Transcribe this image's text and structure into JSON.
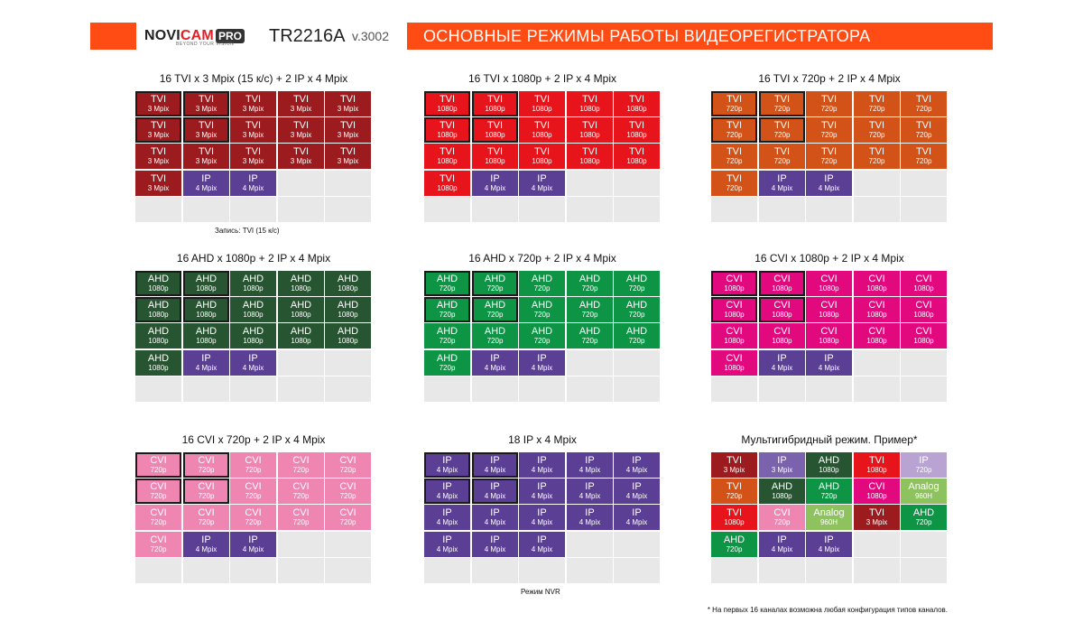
{
  "header": {
    "brand_novi": "NOVI",
    "brand_cam": "CAM",
    "brand_pro": "PRO",
    "brand_tagline": "BEYOND YOUR VISION",
    "model": "TR2216A",
    "version": "v.3002",
    "title": "ОСНОВНЫЕ РЕЖИМЫ РАБОТЫ ВИДЕОРЕГИСТРАТОРА",
    "accent_color": "#ff4b14"
  },
  "palette": {
    "TVI3": "#9b1b1f",
    "TVI1080": "#e8141b",
    "TVI720": "#d35217",
    "AHD1080": "#285531",
    "AHD720": "#0d9545",
    "CVI1080": "#e2097f",
    "CVI720": "#ef86b2",
    "IP4": "#5b3f95",
    "IP3": "#7a62ac",
    "IPL": "#b8a3d2",
    "AN": "#8ec25e",
    "EMPTY": "#e8e8e8"
  },
  "grids": [
    {
      "title": "16 TVI x 3 Mpix (15 к/с) + 2 IP x 4 Mpix",
      "note": "Запись: TVI (15 к/с)",
      "highlight": 2,
      "cells": [
        {
          "l1": "TVI",
          "l2": "3 Mpix",
          "c": "TVI3"
        },
        {
          "l1": "TVI",
          "l2": "3 Mpix",
          "c": "TVI3"
        },
        {
          "l1": "TVI",
          "l2": "3 Mpix",
          "c": "TVI3"
        },
        {
          "l1": "TVI",
          "l2": "3 Mpix",
          "c": "TVI3"
        },
        {
          "l1": "TVI",
          "l2": "3 Mpix",
          "c": "TVI3"
        },
        {
          "l1": "TVI",
          "l2": "3 Mpix",
          "c": "TVI3"
        },
        {
          "l1": "TVI",
          "l2": "3 Mpix",
          "c": "TVI3"
        },
        {
          "l1": "TVI",
          "l2": "3 Mpix",
          "c": "TVI3"
        },
        {
          "l1": "TVI",
          "l2": "3 Mpix",
          "c": "TVI3"
        },
        {
          "l1": "TVI",
          "l2": "3 Mpix",
          "c": "TVI3"
        },
        {
          "l1": "TVI",
          "l2": "3 Mpix",
          "c": "TVI3"
        },
        {
          "l1": "TVI",
          "l2": "3 Mpix",
          "c": "TVI3"
        },
        {
          "l1": "TVI",
          "l2": "3 Mpix",
          "c": "TVI3"
        },
        {
          "l1": "TVI",
          "l2": "3 Mpix",
          "c": "TVI3"
        },
        {
          "l1": "TVI",
          "l2": "3 Mpix",
          "c": "TVI3"
        },
        {
          "l1": "TVI",
          "l2": "3 Mpix",
          "c": "TVI3"
        },
        {
          "l1": "IP",
          "l2": "4 Mpix",
          "c": "IP4"
        },
        {
          "l1": "IP",
          "l2": "4 Mpix",
          "c": "IP4"
        },
        {
          "c": "EMPTY"
        },
        {
          "c": "EMPTY"
        },
        {
          "c": "EMPTY"
        },
        {
          "c": "EMPTY"
        },
        {
          "c": "EMPTY"
        },
        {
          "c": "EMPTY"
        },
        {
          "c": "EMPTY"
        }
      ]
    },
    {
      "title": "16 TVI x 1080p + 2 IP x 4 Mpix",
      "highlight": 2,
      "cells": [
        {
          "l1": "TVI",
          "l2": "1080p",
          "c": "TVI1080"
        },
        {
          "l1": "TVI",
          "l2": "1080p",
          "c": "TVI1080"
        },
        {
          "l1": "TVI",
          "l2": "1080p",
          "c": "TVI1080"
        },
        {
          "l1": "TVI",
          "l2": "1080p",
          "c": "TVI1080"
        },
        {
          "l1": "TVI",
          "l2": "1080p",
          "c": "TVI1080"
        },
        {
          "l1": "TVI",
          "l2": "1080p",
          "c": "TVI1080"
        },
        {
          "l1": "TVI",
          "l2": "1080p",
          "c": "TVI1080"
        },
        {
          "l1": "TVI",
          "l2": "1080p",
          "c": "TVI1080"
        },
        {
          "l1": "TVI",
          "l2": "1080p",
          "c": "TVI1080"
        },
        {
          "l1": "TVI",
          "l2": "1080p",
          "c": "TVI1080"
        },
        {
          "l1": "TVI",
          "l2": "1080p",
          "c": "TVI1080"
        },
        {
          "l1": "TVI",
          "l2": "1080p",
          "c": "TVI1080"
        },
        {
          "l1": "TVI",
          "l2": "1080p",
          "c": "TVI1080"
        },
        {
          "l1": "TVI",
          "l2": "1080p",
          "c": "TVI1080"
        },
        {
          "l1": "TVI",
          "l2": "1080p",
          "c": "TVI1080"
        },
        {
          "l1": "TVI",
          "l2": "1080p",
          "c": "TVI1080"
        },
        {
          "l1": "IP",
          "l2": "4 Mpix",
          "c": "IP4"
        },
        {
          "l1": "IP",
          "l2": "4 Mpix",
          "c": "IP4"
        },
        {
          "c": "EMPTY"
        },
        {
          "c": "EMPTY"
        },
        {
          "c": "EMPTY"
        },
        {
          "c": "EMPTY"
        },
        {
          "c": "EMPTY"
        },
        {
          "c": "EMPTY"
        },
        {
          "c": "EMPTY"
        }
      ]
    },
    {
      "title": "16 TVI x 720p + 2 IP x 4 Mpix",
      "highlight": 2,
      "cells": [
        {
          "l1": "TVI",
          "l2": "720p",
          "c": "TVI720"
        },
        {
          "l1": "TVI",
          "l2": "720p",
          "c": "TVI720"
        },
        {
          "l1": "TVI",
          "l2": "720p",
          "c": "TVI720"
        },
        {
          "l1": "TVI",
          "l2": "720p",
          "c": "TVI720"
        },
        {
          "l1": "TVI",
          "l2": "720p",
          "c": "TVI720"
        },
        {
          "l1": "TVI",
          "l2": "720p",
          "c": "TVI720"
        },
        {
          "l1": "TVI",
          "l2": "720p",
          "c": "TVI720"
        },
        {
          "l1": "TVI",
          "l2": "720p",
          "c": "TVI720"
        },
        {
          "l1": "TVI",
          "l2": "720p",
          "c": "TVI720"
        },
        {
          "l1": "TVI",
          "l2": "720p",
          "c": "TVI720"
        },
        {
          "l1": "TVI",
          "l2": "720p",
          "c": "TVI720"
        },
        {
          "l1": "TVI",
          "l2": "720p",
          "c": "TVI720"
        },
        {
          "l1": "TVI",
          "l2": "720p",
          "c": "TVI720"
        },
        {
          "l1": "TVI",
          "l2": "720p",
          "c": "TVI720"
        },
        {
          "l1": "TVI",
          "l2": "720p",
          "c": "TVI720"
        },
        {
          "l1": "TVI",
          "l2": "720p",
          "c": "TVI720"
        },
        {
          "l1": "IP",
          "l2": "4 Mpix",
          "c": "IP4"
        },
        {
          "l1": "IP",
          "l2": "4 Mpix",
          "c": "IP4"
        },
        {
          "c": "EMPTY"
        },
        {
          "c": "EMPTY"
        },
        {
          "c": "EMPTY"
        },
        {
          "c": "EMPTY"
        },
        {
          "c": "EMPTY"
        },
        {
          "c": "EMPTY"
        },
        {
          "c": "EMPTY"
        }
      ]
    },
    {
      "title": "16 AHD x 1080p + 2 IP x 4 Mpix",
      "highlight": 2,
      "cells": [
        {
          "l1": "AHD",
          "l2": "1080p",
          "c": "AHD1080"
        },
        {
          "l1": "AHD",
          "l2": "1080p",
          "c": "AHD1080"
        },
        {
          "l1": "AHD",
          "l2": "1080p",
          "c": "AHD1080"
        },
        {
          "l1": "AHD",
          "l2": "1080p",
          "c": "AHD1080"
        },
        {
          "l1": "AHD",
          "l2": "1080p",
          "c": "AHD1080"
        },
        {
          "l1": "AHD",
          "l2": "1080p",
          "c": "AHD1080"
        },
        {
          "l1": "AHD",
          "l2": "1080p",
          "c": "AHD1080"
        },
        {
          "l1": "AHD",
          "l2": "1080p",
          "c": "AHD1080"
        },
        {
          "l1": "AHD",
          "l2": "1080p",
          "c": "AHD1080"
        },
        {
          "l1": "AHD",
          "l2": "1080p",
          "c": "AHD1080"
        },
        {
          "l1": "AHD",
          "l2": "1080p",
          "c": "AHD1080"
        },
        {
          "l1": "AHD",
          "l2": "1080p",
          "c": "AHD1080"
        },
        {
          "l1": "AHD",
          "l2": "1080p",
          "c": "AHD1080"
        },
        {
          "l1": "AHD",
          "l2": "1080p",
          "c": "AHD1080"
        },
        {
          "l1": "AHD",
          "l2": "1080p",
          "c": "AHD1080"
        },
        {
          "l1": "AHD",
          "l2": "1080p",
          "c": "AHD1080"
        },
        {
          "l1": "IP",
          "l2": "4 Mpix",
          "c": "IP4"
        },
        {
          "l1": "IP",
          "l2": "4 Mpix",
          "c": "IP4"
        },
        {
          "c": "EMPTY"
        },
        {
          "c": "EMPTY"
        },
        {
          "c": "EMPTY"
        },
        {
          "c": "EMPTY"
        },
        {
          "c": "EMPTY"
        },
        {
          "c": "EMPTY"
        },
        {
          "c": "EMPTY"
        }
      ]
    },
    {
      "title": "16 AHD x 720p + 2 IP x 4 Mpix",
      "highlight": 2,
      "cells": [
        {
          "l1": "AHD",
          "l2": "720p",
          "c": "AHD720"
        },
        {
          "l1": "AHD",
          "l2": "720p",
          "c": "AHD720"
        },
        {
          "l1": "AHD",
          "l2": "720p",
          "c": "AHD720"
        },
        {
          "l1": "AHD",
          "l2": "720p",
          "c": "AHD720"
        },
        {
          "l1": "AHD",
          "l2": "720p",
          "c": "AHD720"
        },
        {
          "l1": "AHD",
          "l2": "720p",
          "c": "AHD720"
        },
        {
          "l1": "AHD",
          "l2": "720p",
          "c": "AHD720"
        },
        {
          "l1": "AHD",
          "l2": "720p",
          "c": "AHD720"
        },
        {
          "l1": "AHD",
          "l2": "720p",
          "c": "AHD720"
        },
        {
          "l1": "AHD",
          "l2": "720p",
          "c": "AHD720"
        },
        {
          "l1": "AHD",
          "l2": "720p",
          "c": "AHD720"
        },
        {
          "l1": "AHD",
          "l2": "720p",
          "c": "AHD720"
        },
        {
          "l1": "AHD",
          "l2": "720p",
          "c": "AHD720"
        },
        {
          "l1": "AHD",
          "l2": "720p",
          "c": "AHD720"
        },
        {
          "l1": "AHD",
          "l2": "720p",
          "c": "AHD720"
        },
        {
          "l1": "AHD",
          "l2": "720p",
          "c": "AHD720"
        },
        {
          "l1": "IP",
          "l2": "4 Mpix",
          "c": "IP4"
        },
        {
          "l1": "IP",
          "l2": "4 Mpix",
          "c": "IP4"
        },
        {
          "c": "EMPTY"
        },
        {
          "c": "EMPTY"
        },
        {
          "c": "EMPTY"
        },
        {
          "c": "EMPTY"
        },
        {
          "c": "EMPTY"
        },
        {
          "c": "EMPTY"
        },
        {
          "c": "EMPTY"
        }
      ]
    },
    {
      "title": "16 CVI x 1080p + 2 IP x 4 Mpix",
      "highlight": 2,
      "cells": [
        {
          "l1": "CVI",
          "l2": "1080p",
          "c": "CVI1080"
        },
        {
          "l1": "CVI",
          "l2": "1080p",
          "c": "CVI1080"
        },
        {
          "l1": "CVI",
          "l2": "1080p",
          "c": "CVI1080"
        },
        {
          "l1": "CVI",
          "l2": "1080p",
          "c": "CVI1080"
        },
        {
          "l1": "CVI",
          "l2": "1080p",
          "c": "CVI1080"
        },
        {
          "l1": "CVI",
          "l2": "1080p",
          "c": "CVI1080"
        },
        {
          "l1": "CVI",
          "l2": "1080p",
          "c": "CVI1080"
        },
        {
          "l1": "CVI",
          "l2": "1080p",
          "c": "CVI1080"
        },
        {
          "l1": "CVI",
          "l2": "1080p",
          "c": "CVI1080"
        },
        {
          "l1": "CVI",
          "l2": "1080p",
          "c": "CVI1080"
        },
        {
          "l1": "CVI",
          "l2": "1080p",
          "c": "CVI1080"
        },
        {
          "l1": "CVI",
          "l2": "1080p",
          "c": "CVI1080"
        },
        {
          "l1": "CVI",
          "l2": "1080p",
          "c": "CVI1080"
        },
        {
          "l1": "CVI",
          "l2": "1080p",
          "c": "CVI1080"
        },
        {
          "l1": "CVI",
          "l2": "1080p",
          "c": "CVI1080"
        },
        {
          "l1": "CVI",
          "l2": "1080p",
          "c": "CVI1080"
        },
        {
          "l1": "IP",
          "l2": "4 Mpix",
          "c": "IP4"
        },
        {
          "l1": "IP",
          "l2": "4 Mpix",
          "c": "IP4"
        },
        {
          "c": "EMPTY"
        },
        {
          "c": "EMPTY"
        },
        {
          "c": "EMPTY"
        },
        {
          "c": "EMPTY"
        },
        {
          "c": "EMPTY"
        },
        {
          "c": "EMPTY"
        },
        {
          "c": "EMPTY"
        }
      ]
    },
    {
      "title": "16 CVI x 720p + 2 IP x 4 Mpix",
      "highlight": 2,
      "cells": [
        {
          "l1": "CVI",
          "l2": "720p",
          "c": "CVI720"
        },
        {
          "l1": "CVI",
          "l2": "720p",
          "c": "CVI720"
        },
        {
          "l1": "CVI",
          "l2": "720p",
          "c": "CVI720"
        },
        {
          "l1": "CVI",
          "l2": "720p",
          "c": "CVI720"
        },
        {
          "l1": "CVI",
          "l2": "720p",
          "c": "CVI720"
        },
        {
          "l1": "CVI",
          "l2": "720p",
          "c": "CVI720"
        },
        {
          "l1": "CVI",
          "l2": "720p",
          "c": "CVI720"
        },
        {
          "l1": "CVI",
          "l2": "720p",
          "c": "CVI720"
        },
        {
          "l1": "CVI",
          "l2": "720p",
          "c": "CVI720"
        },
        {
          "l1": "CVI",
          "l2": "720p",
          "c": "CVI720"
        },
        {
          "l1": "CVI",
          "l2": "720p",
          "c": "CVI720"
        },
        {
          "l1": "CVI",
          "l2": "720p",
          "c": "CVI720"
        },
        {
          "l1": "CVI",
          "l2": "720p",
          "c": "CVI720"
        },
        {
          "l1": "CVI",
          "l2": "720p",
          "c": "CVI720"
        },
        {
          "l1": "CVI",
          "l2": "720p",
          "c": "CVI720"
        },
        {
          "l1": "CVI",
          "l2": "720p",
          "c": "CVI720"
        },
        {
          "l1": "IP",
          "l2": "4 Mpix",
          "c": "IP4"
        },
        {
          "l1": "IP",
          "l2": "4 Mpix",
          "c": "IP4"
        },
        {
          "c": "EMPTY"
        },
        {
          "c": "EMPTY"
        },
        {
          "c": "EMPTY"
        },
        {
          "c": "EMPTY"
        },
        {
          "c": "EMPTY"
        },
        {
          "c": "EMPTY"
        },
        {
          "c": "EMPTY"
        }
      ]
    },
    {
      "title": "18 IP x 4 Mpix",
      "note": "Режим NVR",
      "highlight": 2,
      "cells": [
        {
          "l1": "IP",
          "l2": "4 Mpix",
          "c": "IP4"
        },
        {
          "l1": "IP",
          "l2": "4 Mpix",
          "c": "IP4"
        },
        {
          "l1": "IP",
          "l2": "4 Mpix",
          "c": "IP4"
        },
        {
          "l1": "IP",
          "l2": "4 Mpix",
          "c": "IP4"
        },
        {
          "l1": "IP",
          "l2": "4 Mpix",
          "c": "IP4"
        },
        {
          "l1": "IP",
          "l2": "4 Mpix",
          "c": "IP4"
        },
        {
          "l1": "IP",
          "l2": "4 Mpix",
          "c": "IP4"
        },
        {
          "l1": "IP",
          "l2": "4 Mpix",
          "c": "IP4"
        },
        {
          "l1": "IP",
          "l2": "4 Mpix",
          "c": "IP4"
        },
        {
          "l1": "IP",
          "l2": "4 Mpix",
          "c": "IP4"
        },
        {
          "l1": "IP",
          "l2": "4 Mpix",
          "c": "IP4"
        },
        {
          "l1": "IP",
          "l2": "4 Mpix",
          "c": "IP4"
        },
        {
          "l1": "IP",
          "l2": "4 Mpix",
          "c": "IP4"
        },
        {
          "l1": "IP",
          "l2": "4 Mpix",
          "c": "IP4"
        },
        {
          "l1": "IP",
          "l2": "4 Mpix",
          "c": "IP4"
        },
        {
          "l1": "IP",
          "l2": "4 Mpix",
          "c": "IP4"
        },
        {
          "l1": "IP",
          "l2": "4 Mpix",
          "c": "IP4"
        },
        {
          "l1": "IP",
          "l2": "4 Mpix",
          "c": "IP4"
        },
        {
          "c": "EMPTY"
        },
        {
          "c": "EMPTY"
        },
        {
          "c": "EMPTY"
        },
        {
          "c": "EMPTY"
        },
        {
          "c": "EMPTY"
        },
        {
          "c": "EMPTY"
        },
        {
          "c": "EMPTY"
        }
      ]
    },
    {
      "title": "Мультигибридный режим. Пример*",
      "highlight": 0,
      "cells": [
        {
          "l1": "TVI",
          "l2": "3 Mpix",
          "c": "TVI3"
        },
        {
          "l1": "IP",
          "l2": "3 Mpix",
          "c": "IP3"
        },
        {
          "l1": "AHD",
          "l2": "1080p",
          "c": "AHD1080"
        },
        {
          "l1": "TVI",
          "l2": "1080p",
          "c": "TVI1080"
        },
        {
          "l1": "IP",
          "l2": "720p",
          "c": "IPL"
        },
        {
          "l1": "TVI",
          "l2": "720p",
          "c": "TVI720"
        },
        {
          "l1": "AHD",
          "l2": "1080p",
          "c": "AHD1080"
        },
        {
          "l1": "AHD",
          "l2": "720p",
          "c": "AHD720"
        },
        {
          "l1": "CVI",
          "l2": "1080p",
          "c": "CVI1080"
        },
        {
          "l1": "Analog",
          "l2": "960H",
          "c": "AN"
        },
        {
          "l1": "TVI",
          "l2": "1080p",
          "c": "TVI1080"
        },
        {
          "l1": "CVI",
          "l2": "720p",
          "c": "CVI720"
        },
        {
          "l1": "Analog",
          "l2": "960H",
          "c": "AN"
        },
        {
          "l1": "TVI",
          "l2": "3 Mpix",
          "c": "TVI3"
        },
        {
          "l1": "AHD",
          "l2": "720p",
          "c": "AHD720"
        },
        {
          "l1": "AHD",
          "l2": "720p",
          "c": "AHD720"
        },
        {
          "l1": "IP",
          "l2": "4 Mpix",
          "c": "IP4"
        },
        {
          "l1": "IP",
          "l2": "4 Mpix",
          "c": "IP4"
        },
        {
          "c": "EMPTY"
        },
        {
          "c": "EMPTY"
        },
        {
          "c": "EMPTY"
        },
        {
          "c": "EMPTY"
        },
        {
          "c": "EMPTY"
        },
        {
          "c": "EMPTY"
        },
        {
          "c": "EMPTY"
        }
      ]
    }
  ],
  "footnote": "* На первых 16 каналах возможна любая конфигурация типов каналов."
}
